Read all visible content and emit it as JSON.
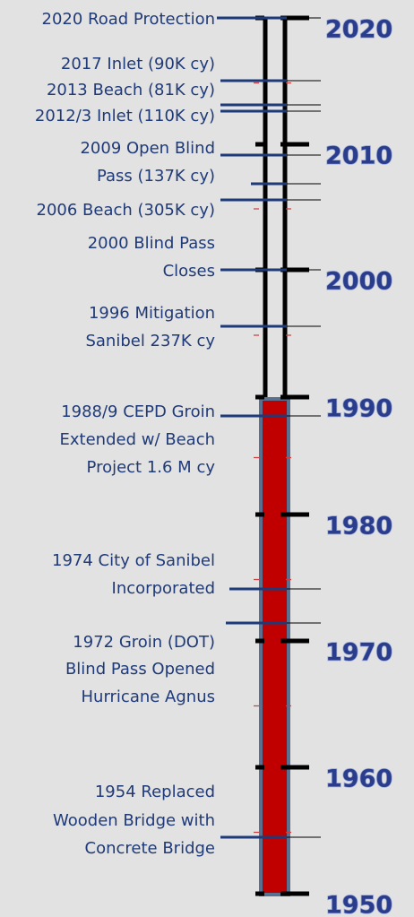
{
  "decades": [
    "2020",
    "2010",
    "2000",
    "1990",
    "1980",
    "1970",
    "1960",
    "1950"
  ],
  "events": [
    {
      "lines": [
        "2020 Road Protection"
      ]
    },
    {
      "lines": [
        "2017 Inlet (90K cy)",
        "2013 Beach (81K cy)"
      ]
    },
    {
      "lines": [
        "2012/3 Inlet (110K cy)"
      ]
    },
    {
      "lines": [
        "2009 Open Blind",
        "Pass (137K cy)"
      ]
    },
    {
      "lines": [
        "2006 Beach (305K cy)"
      ]
    },
    {
      "lines": [
        "2000 Blind Pass",
        "Closes"
      ]
    },
    {
      "lines": [
        "1996 Mitigation",
        "Sanibel 237K cy"
      ]
    },
    {
      "lines": [
        "1988/9 CEPD Groin",
        "Extended w/ Beach",
        "Project 1.6 M cy"
      ]
    },
    {
      "lines": [
        "1974 City of Sanibel",
        "Incorporated"
      ]
    },
    {
      "lines": [
        "1972 Groin (DOT)",
        "Blind Pass Opened",
        "Hurricane Agnus"
      ]
    },
    {
      "lines": [
        "1954 Replaced",
        "Wooden Bridge with",
        "Concrete Bridge"
      ]
    }
  ]
}
